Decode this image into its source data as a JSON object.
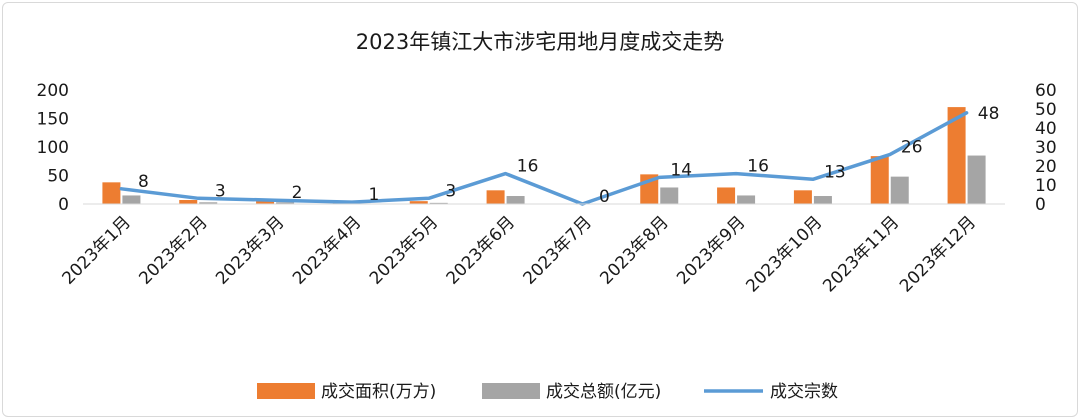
{
  "chart_data": {
    "type": "bar+line",
    "title": "2023年镇江大市涉宅用地月度成交走势",
    "categories": [
      "2023年1月",
      "2023年2月",
      "2023年3月",
      "2023年4月",
      "2023年5月",
      "2023年6月",
      "2023年7月",
      "2023年8月",
      "2023年9月",
      "2023年10月",
      "2023年11月",
      "2023年12月"
    ],
    "series": [
      {
        "name": "成交面积(万方)",
        "type": "bar",
        "axis": "left",
        "color": "#ed7d31",
        "values": [
          38,
          7,
          8,
          3,
          5,
          24,
          0,
          52,
          29,
          24,
          84,
          170
        ]
      },
      {
        "name": "成交总额(亿元)",
        "type": "bar",
        "axis": "left",
        "color": "#a5a5a5",
        "values": [
          15,
          3,
          3,
          1,
          2,
          14,
          0,
          29,
          15,
          14,
          48,
          85
        ]
      },
      {
        "name": "成交宗数",
        "type": "line",
        "axis": "right",
        "color": "#5b9bd5",
        "values": [
          8,
          3,
          2,
          1,
          3,
          16,
          0,
          14,
          16,
          13,
          26,
          48
        ],
        "labels": [
          "8",
          "3",
          "2",
          "1",
          "3",
          "16",
          "0",
          "14",
          "16",
          "13",
          "26",
          "48"
        ]
      }
    ],
    "y_left": {
      "min": 0,
      "max": 200,
      "ticks": [
        "0",
        "50",
        "100",
        "150",
        "200"
      ]
    },
    "y_right": {
      "min": 0,
      "max": 60,
      "ticks": [
        "0",
        "10",
        "20",
        "30",
        "40",
        "50",
        "60"
      ]
    },
    "grid": false,
    "legend": "bottom"
  }
}
